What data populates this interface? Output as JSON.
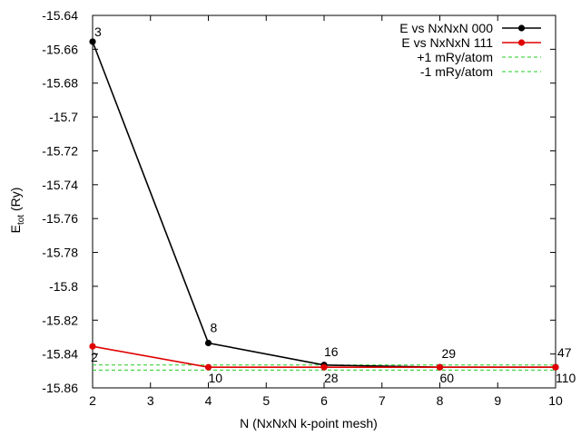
{
  "chart_data": {
    "type": "line",
    "title": "",
    "xlabel": "N (NxNxN k-point mesh)",
    "ylabel_main": "E",
    "ylabel_sub": "tot",
    "ylabel_unit": " (Ry)",
    "xlim": [
      2,
      10
    ],
    "ylim": [
      -15.86,
      -15.64
    ],
    "x_ticks": [
      "2",
      "3",
      "4",
      "5",
      "6",
      "7",
      "8",
      "9",
      "10"
    ],
    "y_ticks": [
      "-15.64",
      "-15.66",
      "-15.68",
      "-15.7",
      "-15.72",
      "-15.74",
      "-15.76",
      "-15.78",
      "-15.8",
      "-15.82",
      "-15.84",
      "-15.86"
    ],
    "grid": false,
    "legend_position": "top-right",
    "series": [
      {
        "name": "E vs NxNxN 000",
        "color": "#000000",
        "style": "line+points",
        "x": [
          2,
          4,
          6,
          8,
          10
        ],
        "y": [
          -15.6555,
          -15.8335,
          -15.8465,
          -15.8478,
          -15.8478
        ],
        "point_labels": [
          "3",
          "8",
          "16",
          "29",
          "47"
        ]
      },
      {
        "name": "E vs NxNxN 111",
        "color": "#e00000",
        "style": "line+points",
        "x": [
          2,
          4,
          6,
          8,
          10
        ],
        "y": [
          -15.8355,
          -15.8478,
          -15.8478,
          -15.8478,
          -15.8478
        ],
        "point_labels": [
          "2",
          "10",
          "28",
          "60",
          "110"
        ]
      },
      {
        "name": "+1 mRy/atom",
        "color": "#22cc22",
        "style": "dashed",
        "x": [
          2,
          10
        ],
        "y": [
          -15.8465,
          -15.8465
        ]
      },
      {
        "name": "-1 mRy/atom",
        "color": "#22cc22",
        "style": "dashed",
        "x": [
          2,
          10
        ],
        "y": [
          -15.8495,
          -15.8495
        ]
      }
    ]
  }
}
